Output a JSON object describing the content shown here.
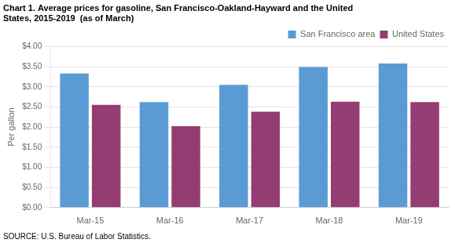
{
  "chart_data": {
    "type": "bar",
    "title": [
      "Chart 1. Average prices for gasoline, San Francisco-Oakland-Hayward and the United",
      "States, 2015-2019  (as of March)"
    ],
    "ylabel": "Per gallon",
    "annotations": [
      "SOURCE: U.S. Bureau of Labor Statistics."
    ],
    "categories": [
      "Mar-15",
      "Mar-16",
      "Mar-17",
      "Mar-18",
      "Mar-19"
    ],
    "series": [
      {
        "name": "San Francisco area",
        "color": "#5B9BD5",
        "values": [
          3.33,
          2.62,
          3.05,
          3.49,
          3.58
        ]
      },
      {
        "name": "United States",
        "color": "#943D73",
        "values": [
          2.55,
          2.02,
          2.38,
          2.63,
          2.62
        ]
      }
    ],
    "ylim": [
      0.0,
      4.0
    ],
    "yticks": [
      {
        "value": 0.0,
        "label": "$0.00"
      },
      {
        "value": 0.5,
        "label": "$0.50"
      },
      {
        "value": 1.0,
        "label": "$1.00"
      },
      {
        "value": 1.5,
        "label": "$1.50"
      },
      {
        "value": 2.0,
        "label": "$2.00"
      },
      {
        "value": 2.5,
        "label": "$2.50"
      },
      {
        "value": 3.0,
        "label": "$3.00"
      },
      {
        "value": 3.5,
        "label": "$3.50"
      },
      {
        "value": 4.0,
        "label": "$4.00"
      }
    ],
    "grid": true,
    "legend": "upper right"
  }
}
